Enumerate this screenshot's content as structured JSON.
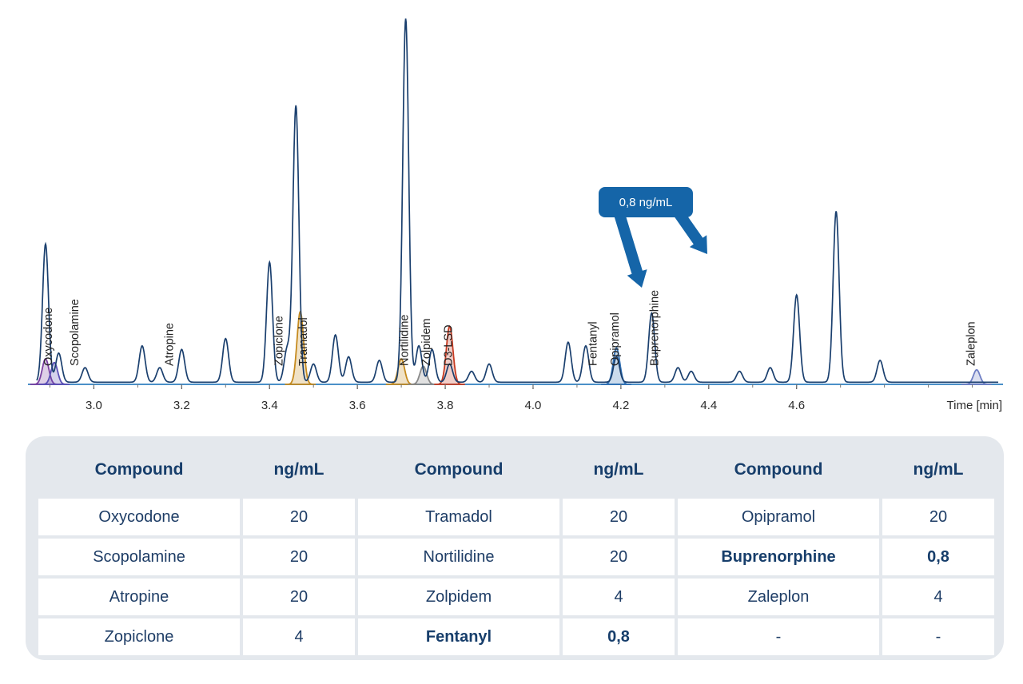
{
  "chart_data": {
    "type": "line",
    "xlabel": "Time [min]",
    "xlim": [
      2.85,
      5.07
    ],
    "ylim": [
      0,
      100
    ],
    "x_ticks": [
      3.0,
      3.2,
      3.4,
      3.6,
      3.8,
      4.0,
      4.2,
      4.4,
      4.6
    ],
    "x_tick_labels": [
      "3.0",
      "3.2",
      "3.4",
      "3.6",
      "3.8",
      "4.0",
      "4.2",
      "4.4",
      "4.6"
    ],
    "grid": false,
    "total_ion_peaks": [
      [
        2.89,
        38
      ],
      [
        2.92,
        8
      ],
      [
        2.98,
        4
      ],
      [
        3.11,
        10
      ],
      [
        3.15,
        4
      ],
      [
        3.2,
        9
      ],
      [
        3.3,
        12
      ],
      [
        3.4,
        33
      ],
      [
        3.44,
        9
      ],
      [
        3.46,
        76
      ],
      [
        3.5,
        5
      ],
      [
        3.55,
        13
      ],
      [
        3.58,
        7
      ],
      [
        3.65,
        6
      ],
      [
        3.71,
        100
      ],
      [
        3.74,
        10
      ],
      [
        3.77,
        9
      ],
      [
        3.81,
        5
      ],
      [
        3.86,
        3
      ],
      [
        3.9,
        5
      ],
      [
        4.08,
        11
      ],
      [
        4.12,
        10
      ],
      [
        4.19,
        7
      ],
      [
        4.27,
        19
      ],
      [
        4.33,
        4
      ],
      [
        4.36,
        3
      ],
      [
        4.47,
        3
      ],
      [
        4.54,
        4
      ],
      [
        4.6,
        24
      ],
      [
        4.69,
        47
      ],
      [
        4.79,
        6
      ]
    ],
    "highlighted_peaks": [
      {
        "name": "Oxycodone",
        "rt": 2.89,
        "height": 7,
        "color": "#7a3fa0"
      },
      {
        "name": "Scopolamine",
        "rt": 2.91,
        "height": 6,
        "color": "#5a4fb5"
      },
      {
        "name": "Tramadol",
        "rt": 3.47,
        "height": 20,
        "color": "#c58a1e"
      },
      {
        "name": "Nortilidine",
        "rt": 3.7,
        "height": 7,
        "color": "#c58a1e"
      },
      {
        "name": "Zolpidem",
        "rt": 3.75,
        "height": 5,
        "color": "#888888"
      },
      {
        "name": "D3-LSD",
        "rt": 3.81,
        "height": 16,
        "color": "#c63b22"
      },
      {
        "name": "Fentanyl",
        "rt": 4.19,
        "height": 10,
        "color": "#2f6fb3"
      },
      {
        "name": "Zaleplon",
        "rt": 5.01,
        "height": 4,
        "color": "#6f7fc4"
      }
    ],
    "peak_labels": [
      {
        "text": "Oxycodone",
        "rt": 2.905
      },
      {
        "text": "Scopolamine",
        "rt": 2.965
      },
      {
        "text": "Atropine",
        "rt": 3.18
      },
      {
        "text": "Zopiclone",
        "rt": 3.43
      },
      {
        "text": "Tramadol",
        "rt": 3.485
      },
      {
        "text": "Nortilidine",
        "rt": 3.715
      },
      {
        "text": "Zolpidem",
        "rt": 3.765
      },
      {
        "text": "D3-LSD",
        "rt": 3.815
      },
      {
        "text": "Fentanyl",
        "rt": 4.145
      },
      {
        "text": "Opipramol",
        "rt": 4.195
      },
      {
        "text": "Buprenorphine",
        "rt": 4.285
      },
      {
        "text": "Zaleplon",
        "rt": 5.005
      }
    ],
    "callout": {
      "text": "0,8 ng/mL",
      "targets": [
        "Fentanyl",
        "Buprenorphine"
      ]
    }
  },
  "table": {
    "headers": [
      "Compound",
      "ng/mL",
      "Compound",
      "ng/mL",
      "Compound",
      "ng/mL"
    ],
    "rows": [
      [
        {
          "t": "Oxycodone"
        },
        {
          "t": "20"
        },
        {
          "t": "Tramadol"
        },
        {
          "t": "20"
        },
        {
          "t": "Opipramol"
        },
        {
          "t": "20"
        }
      ],
      [
        {
          "t": "Scopolamine"
        },
        {
          "t": "20"
        },
        {
          "t": "Nortilidine"
        },
        {
          "t": "20"
        },
        {
          "t": "Buprenorphine",
          "bold": true
        },
        {
          "t": "0,8",
          "bold": true
        }
      ],
      [
        {
          "t": "Atropine"
        },
        {
          "t": "20"
        },
        {
          "t": "Zolpidem"
        },
        {
          "t": "4"
        },
        {
          "t": "Zaleplon"
        },
        {
          "t": "4"
        }
      ],
      [
        {
          "t": "Zopiclone"
        },
        {
          "t": "4"
        },
        {
          "t": "Fentanyl",
          "bold": true
        },
        {
          "t": "0,8",
          "bold": true
        },
        {
          "t": "-"
        },
        {
          "t": "-"
        }
      ]
    ]
  },
  "colors": {
    "tic_line": "#1a3f6e",
    "baseline": "#4a90c8",
    "callout": "#1565a8",
    "table_bg": "#e4e8ed",
    "header_text": "#173e6b"
  }
}
